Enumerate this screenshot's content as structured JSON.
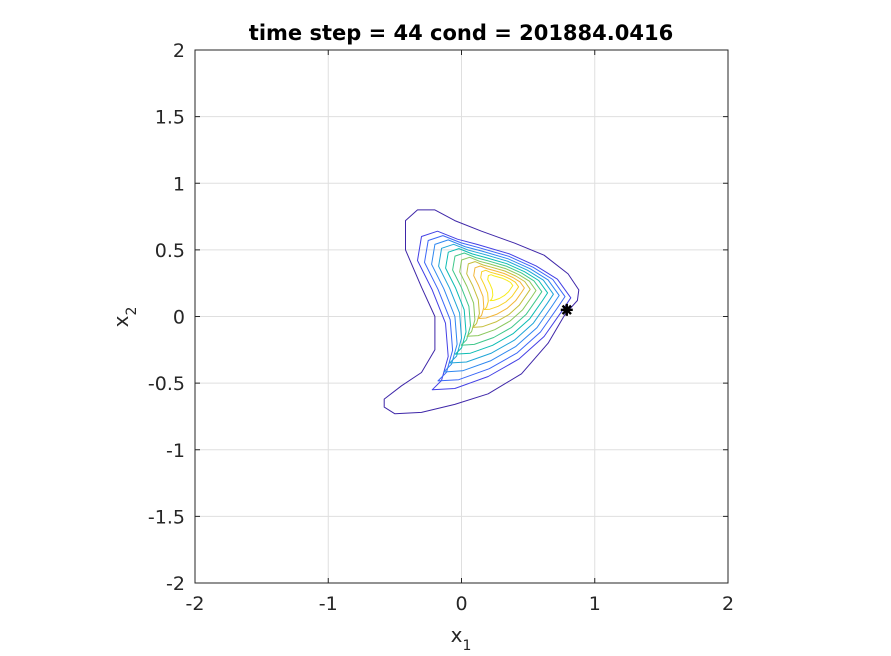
{
  "chart_data": {
    "type": "contour",
    "title": "time step = 44 cond = 201884.0416",
    "xlabel": {
      "base": "x",
      "sub": "1"
    },
    "ylabel": {
      "base": "x",
      "sub": "2"
    },
    "xlim": [
      -2,
      2
    ],
    "ylim": [
      -2,
      2
    ],
    "xticks": [
      -2,
      -1,
      0,
      1,
      2
    ],
    "xtick_labels": [
      "-2",
      "-1",
      "0",
      "1",
      "2"
    ],
    "yticks": [
      -2,
      -1.5,
      -1,
      -0.5,
      0,
      0.5,
      1,
      1.5,
      2
    ],
    "ytick_labels": [
      "-2",
      "-1.5",
      "-1",
      "-0.5",
      "0",
      "0.5",
      "1",
      "1.5",
      "2"
    ],
    "grid": true,
    "colormap": "parula",
    "colors": [
      "#3e26a8",
      "#4340e5",
      "#3a67f7",
      "#2e87f0",
      "#1fa5d7",
      "#0bbcb3",
      "#3fc78b",
      "#8bc85d",
      "#c6bf3c",
      "#f2b639",
      "#f8d126",
      "#f7ec1c"
    ],
    "contour_peak": {
      "x": 0.3,
      "y": 0.25
    },
    "marker": {
      "x": 0.79,
      "y": 0.05,
      "symbol": "asterisk",
      "color": "#000000"
    }
  }
}
